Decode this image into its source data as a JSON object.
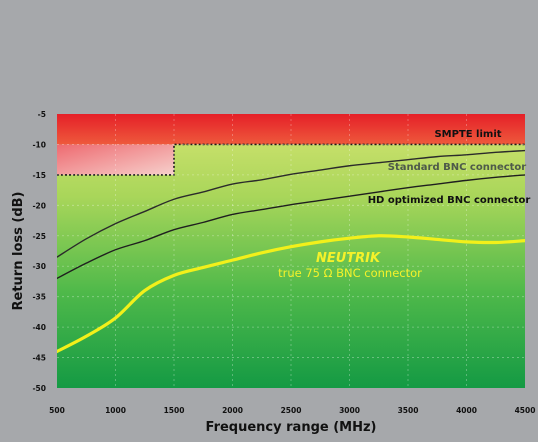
{
  "chart_data": {
    "type": "line",
    "title": "",
    "xlabel": "Frequency range (MHz)",
    "ylabel": "Return loss (dB)",
    "xlim": [
      500,
      4500
    ],
    "ylim": [
      -50,
      -5
    ],
    "x_ticks": [
      500,
      1000,
      1500,
      2000,
      2500,
      3000,
      3500,
      4000,
      4500
    ],
    "y_ticks": [
      -5,
      -10,
      -15,
      -20,
      -25,
      -30,
      -35,
      -40,
      -45,
      -50
    ],
    "grid": true,
    "colors": {
      "limit_zone": "#e8202a",
      "background_top": "#cbe06a",
      "background_bottom": "#17a047",
      "standard_line": "#2b2b2b",
      "hd_line": "#1f1f1f",
      "neutrik_line": "#f2f01a",
      "frame": "#a6a8ab"
    },
    "limit": {
      "label": "SMPTE limit",
      "steps": [
        {
          "x": [
            500,
            1500
          ],
          "y": -15
        },
        {
          "x": [
            1500,
            4500
          ],
          "y": -10
        }
      ]
    },
    "series": [
      {
        "name": "Standard BNC connector",
        "color": "#2b2b2b",
        "x": [
          500,
          750,
          1000,
          1250,
          1500,
          1750,
          2000,
          2250,
          2500,
          2750,
          3000,
          3250,
          3500,
          3750,
          4000,
          4250,
          4500
        ],
        "y": [
          -28.5,
          -25.5,
          -23,
          -21,
          -19,
          -17.8,
          -16.5,
          -15.8,
          -14.9,
          -14.2,
          -13.5,
          -13,
          -12.5,
          -12,
          -11.7,
          -11.3,
          -11
        ]
      },
      {
        "name": "HD optimized BNC connector",
        "color": "#1f1f1f",
        "x": [
          500,
          750,
          1000,
          1250,
          1500,
          1750,
          2000,
          2250,
          2500,
          2750,
          3000,
          3250,
          3500,
          3750,
          4000,
          4250,
          4500
        ],
        "y": [
          -32,
          -29.5,
          -27.3,
          -25.8,
          -24,
          -22.8,
          -21.5,
          -20.7,
          -19.9,
          -19.2,
          -18.5,
          -17.8,
          -17.1,
          -16.5,
          -15.9,
          -15.4,
          -15
        ]
      },
      {
        "name": "NEUTRIK true 75 Ω BNC connector",
        "color": "#f2f01a",
        "x": [
          500,
          750,
          1000,
          1250,
          1500,
          1750,
          2000,
          2250,
          2500,
          2750,
          3000,
          3250,
          3500,
          3750,
          4000,
          4250,
          4500
        ],
        "y": [
          -44,
          -41.5,
          -38.5,
          -34,
          -31.5,
          -30.2,
          -29,
          -27.8,
          -26.8,
          -26,
          -25.4,
          -25,
          -25.2,
          -25.6,
          -26,
          -26.1,
          -25.8
        ]
      }
    ],
    "annotations": {
      "standard": "Standard BNC connector",
      "hd": "HD optimized BNC connector",
      "neutrik_brand": "NEUTRIK",
      "neutrik_desc": "true 75 Ω BNC connector"
    }
  }
}
